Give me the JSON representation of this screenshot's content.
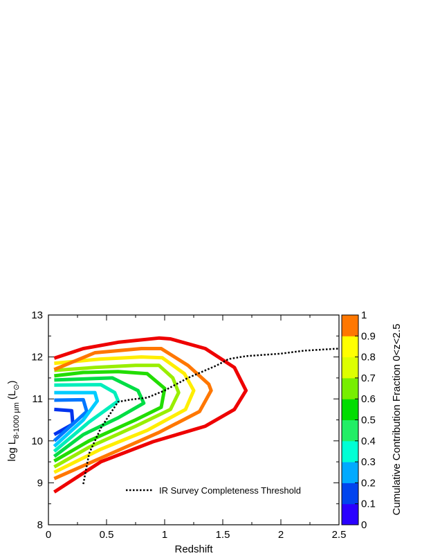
{
  "chart_data": {
    "type": "contour",
    "xlabel": "Redshift",
    "ylabel_main": "log L",
    "ylabel_sub": "8-1000 µm",
    "ylabel_unit": "(L",
    "ylabel_unit_close": ")",
    "ylabel_sun": "⊙",
    "xlim": [
      0,
      2.5
    ],
    "ylim": [
      8,
      13
    ],
    "xticks": [
      "0",
      "0.5",
      "1",
      "1.5",
      "2",
      "2.5"
    ],
    "xtick_values": [
      0,
      0.5,
      1,
      1.5,
      2,
      2.5
    ],
    "yticks": [
      "8",
      "9",
      "10",
      "11",
      "12",
      "13"
    ],
    "ytick_values": [
      8,
      9,
      10,
      11,
      12,
      13
    ],
    "legend_label": "IR Survey Completeness Threshold",
    "colorbar": {
      "label": "Cumulative Contribution Fraction 0<z<2.5",
      "ticks": [
        "0",
        "0.1",
        "0.2",
        "0.3",
        "0.4",
        "0.5",
        "0.6",
        "0.7",
        "0.8",
        "0.9",
        "1"
      ],
      "tick_values": [
        0,
        0.1,
        0.2,
        0.3,
        0.4,
        0.5,
        0.6,
        0.7,
        0.8,
        0.9,
        1.0
      ],
      "colors": [
        "#3300ff",
        "#0033ff",
        "#0099ff",
        "#00ffcc",
        "#00ee88",
        "#00dd00",
        "#66ee00",
        "#ccff00",
        "#ffff00",
        "#ff8800",
        "#ff0000"
      ],
      "band_colors": [
        "#2a00ff",
        "#0044ee",
        "#00aaff",
        "#00ffd5",
        "#22ee66",
        "#00dd00",
        "#77ee00",
        "#ddff00",
        "#ffff00",
        "#ff7700",
        "#ff0000"
      ]
    },
    "contours": [
      {
        "level": 0.1,
        "color": "#0033ee",
        "points": [
          [
            0.05,
            10.75
          ],
          [
            0.2,
            10.72
          ],
          [
            0.21,
            10.4
          ],
          [
            0.05,
            10.15
          ]
        ]
      },
      {
        "level": 0.2,
        "color": "#0077ff",
        "points": [
          [
            0.05,
            10.97
          ],
          [
            0.3,
            10.98
          ],
          [
            0.33,
            10.7
          ],
          [
            0.05,
            10.0
          ]
        ]
      },
      {
        "level": 0.3,
        "color": "#00ccff",
        "points": [
          [
            0.05,
            11.15
          ],
          [
            0.4,
            11.15
          ],
          [
            0.42,
            10.95
          ],
          [
            0.3,
            10.5
          ],
          [
            0.05,
            9.87
          ]
        ]
      },
      {
        "level": 0.4,
        "color": "#00eebb",
        "points": [
          [
            0.05,
            11.33
          ],
          [
            0.45,
            11.34
          ],
          [
            0.57,
            11.15
          ],
          [
            0.6,
            10.95
          ],
          [
            0.35,
            10.45
          ],
          [
            0.05,
            9.75
          ]
        ]
      },
      {
        "level": 0.5,
        "color": "#00dd44",
        "points": [
          [
            0.05,
            11.45
          ],
          [
            0.55,
            11.5
          ],
          [
            0.77,
            11.2
          ],
          [
            0.82,
            10.9
          ],
          [
            0.6,
            10.55
          ],
          [
            0.3,
            10.15
          ],
          [
            0.05,
            9.63
          ]
        ]
      },
      {
        "level": 0.6,
        "color": "#22dd00",
        "points": [
          [
            0.05,
            11.55
          ],
          [
            0.3,
            11.63
          ],
          [
            0.6,
            11.65
          ],
          [
            0.85,
            11.6
          ],
          [
            1.0,
            11.25
          ],
          [
            0.97,
            10.8
          ],
          [
            0.75,
            10.5
          ],
          [
            0.35,
            10.0
          ],
          [
            0.05,
            9.52
          ]
        ]
      },
      {
        "level": 0.7,
        "color": "#99ee00",
        "points": [
          [
            0.05,
            11.68
          ],
          [
            0.4,
            11.75
          ],
          [
            0.75,
            11.8
          ],
          [
            0.95,
            11.8
          ],
          [
            1.07,
            11.5
          ],
          [
            1.12,
            11.15
          ],
          [
            1.05,
            10.75
          ],
          [
            0.75,
            10.35
          ],
          [
            0.35,
            9.85
          ],
          [
            0.05,
            9.38
          ]
        ]
      },
      {
        "level": 0.8,
        "color": "#ffee00",
        "points": [
          [
            0.05,
            11.85
          ],
          [
            0.45,
            11.95
          ],
          [
            0.8,
            12.0
          ],
          [
            0.98,
            11.98
          ],
          [
            1.17,
            11.6
          ],
          [
            1.25,
            11.2
          ],
          [
            1.18,
            10.75
          ],
          [
            0.85,
            10.25
          ],
          [
            0.45,
            9.8
          ],
          [
            0.05,
            9.25
          ]
        ]
      },
      {
        "level": 0.9,
        "color": "#ff7700",
        "points": [
          [
            0.05,
            11.7
          ],
          [
            0.4,
            12.1
          ],
          [
            0.8,
            12.2
          ],
          [
            0.97,
            12.2
          ],
          [
            1.2,
            11.8
          ],
          [
            1.38,
            11.35
          ],
          [
            1.4,
            11.2
          ],
          [
            1.3,
            10.7
          ],
          [
            0.95,
            10.2
          ],
          [
            0.5,
            9.65
          ],
          [
            0.05,
            9.1
          ]
        ]
      },
      {
        "level": 1.0,
        "color": "#ee0000",
        "points": [
          [
            0.05,
            11.97
          ],
          [
            0.3,
            12.2
          ],
          [
            0.6,
            12.35
          ],
          [
            0.95,
            12.45
          ],
          [
            1.05,
            12.43
          ],
          [
            1.35,
            12.2
          ],
          [
            1.6,
            11.75
          ],
          [
            1.7,
            11.2
          ],
          [
            1.6,
            10.75
          ],
          [
            1.35,
            10.35
          ],
          [
            0.9,
            9.98
          ],
          [
            0.45,
            9.5
          ],
          [
            0.05,
            8.78
          ]
        ]
      }
    ],
    "threshold": {
      "name": "IR Survey Completeness Threshold",
      "x": [
        0.3,
        0.35,
        0.45,
        0.58,
        0.6,
        0.7,
        0.85,
        1.0,
        1.2,
        1.45,
        1.55,
        1.7,
        2.0,
        2.2,
        2.5
      ],
      "y": [
        8.97,
        9.7,
        10.3,
        10.85,
        10.93,
        10.98,
        11.03,
        11.2,
        11.5,
        11.8,
        11.95,
        12.02,
        12.08,
        12.15,
        12.2
      ]
    }
  }
}
